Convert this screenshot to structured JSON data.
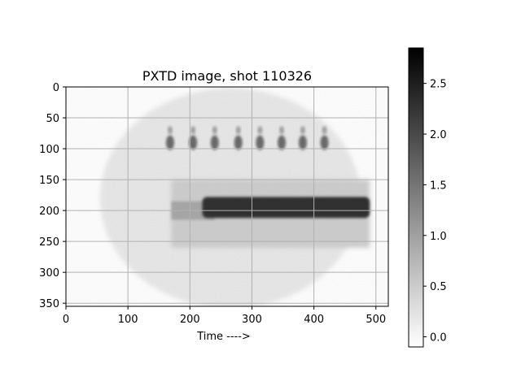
{
  "chart_data": {
    "type": "heatmap",
    "title": "PXTD image, shot 110326",
    "xlabel": "Time ---->",
    "ylabel": "",
    "xlim": [
      0,
      520
    ],
    "ylim": [
      355,
      0
    ],
    "x_ticks": [
      0,
      100,
      200,
      300,
      400,
      500
    ],
    "y_ticks": [
      0,
      50,
      100,
      150,
      200,
      250,
      300,
      350
    ],
    "grid": true,
    "colormap": "gray_r",
    "colorbar": {
      "vmin": -0.1,
      "vmax": 2.85,
      "ticks": [
        0.0,
        0.5,
        1.0,
        1.5,
        2.0,
        2.5
      ],
      "tick_labels": [
        "0.0",
        "0.5",
        "1.0",
        "1.5",
        "2.0",
        "2.5"
      ]
    },
    "features": {
      "detector_disk": {
        "cx": 265,
        "cy": 180,
        "rx": 210,
        "ry": 178,
        "value": 0.15
      },
      "fiducial_spots": {
        "y": 85,
        "x": [
          168,
          205,
          240,
          278,
          313,
          348,
          382,
          417
        ],
        "value": 1.6
      },
      "background_band": {
        "x": [
          170,
          490
        ],
        "y": [
          150,
          260
        ],
        "value": 0.45
      },
      "main_signal": {
        "x": [
          220,
          490
        ],
        "y": [
          178,
          212
        ],
        "value": 2.3
      },
      "weak_signal": {
        "x": [
          170,
          240
        ],
        "y": [
          185,
          215
        ],
        "value": 0.9
      }
    }
  }
}
